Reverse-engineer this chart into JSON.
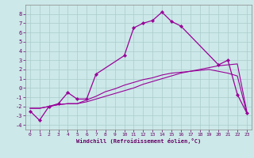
{
  "xlabel": "Windchill (Refroidissement éolien,°C)",
  "xlim": [
    -0.5,
    23.5
  ],
  "ylim": [
    -4.5,
    9.0
  ],
  "xticks": [
    0,
    1,
    2,
    3,
    4,
    5,
    6,
    7,
    8,
    9,
    10,
    11,
    12,
    13,
    14,
    15,
    16,
    17,
    18,
    19,
    20,
    21,
    22,
    23
  ],
  "yticks": [
    -4,
    -3,
    -2,
    -1,
    0,
    1,
    2,
    3,
    4,
    5,
    6,
    7,
    8
  ],
  "bg_color": "#cce8e8",
  "grid_color": "#aacccc",
  "line_color": "#990099",
  "line1_x": [
    0,
    1,
    2,
    3,
    4,
    5,
    6,
    7,
    10,
    11,
    12,
    13,
    14,
    15,
    16,
    20,
    21,
    22,
    23
  ],
  "line1_y": [
    -2.5,
    -3.5,
    -2.0,
    -1.7,
    -0.5,
    -1.2,
    -1.2,
    1.5,
    3.5,
    6.5,
    7.0,
    7.3,
    8.2,
    7.2,
    6.7,
    2.5,
    3.0,
    -0.7,
    -2.7
  ],
  "line2_x": [
    0,
    1,
    2,
    3,
    4,
    5,
    6,
    7,
    8,
    9,
    10,
    11,
    12,
    13,
    14,
    15,
    16,
    17,
    18,
    19,
    20,
    21,
    22,
    23
  ],
  "line2_y": [
    -2.2,
    -2.2,
    -2.0,
    -1.8,
    -1.7,
    -1.7,
    -1.5,
    -1.2,
    -0.9,
    -0.6,
    -0.3,
    0.0,
    0.4,
    0.7,
    1.0,
    1.3,
    1.6,
    1.8,
    2.0,
    2.2,
    2.4,
    2.5,
    2.6,
    -2.5
  ],
  "line3_x": [
    0,
    1,
    2,
    3,
    4,
    5,
    6,
    7,
    8,
    9,
    10,
    11,
    12,
    13,
    14,
    15,
    16,
    17,
    18,
    19,
    20,
    21,
    22,
    23
  ],
  "line3_y": [
    -2.2,
    -2.2,
    -2.0,
    -1.8,
    -1.7,
    -1.7,
    -1.3,
    -0.9,
    -0.4,
    -0.1,
    0.3,
    0.6,
    0.9,
    1.1,
    1.4,
    1.6,
    1.7,
    1.8,
    1.9,
    2.0,
    1.8,
    1.6,
    1.3,
    -2.7
  ]
}
